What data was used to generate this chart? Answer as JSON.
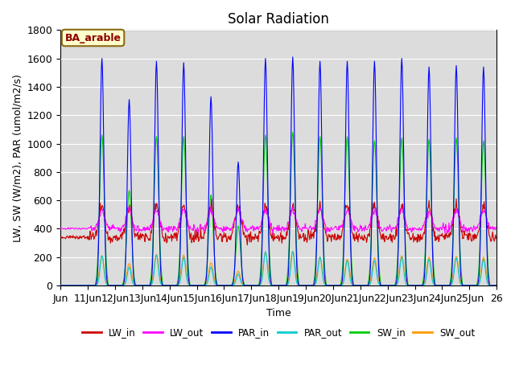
{
  "title": "Solar Radiation",
  "ylabel": "LW, SW (W/m2), PAR (umol/m2/s)",
  "xlabel": "Time",
  "site_label": "BA_arable",
  "ylim": [
    0,
    1800
  ],
  "series": {
    "LW_in": {
      "color": "#cc0000",
      "lw": 0.8
    },
    "LW_out": {
      "color": "#ff00ff",
      "lw": 0.8
    },
    "PAR_in": {
      "color": "#0000ff",
      "lw": 0.8
    },
    "PAR_out": {
      "color": "#00cccc",
      "lw": 0.8
    },
    "SW_in": {
      "color": "#00cc00",
      "lw": 0.8
    },
    "SW_out": {
      "color": "#ff9900",
      "lw": 0.8
    }
  },
  "background_color": "#dcdcdc",
  "figure_facecolor": "#ffffff",
  "title_fontsize": 12,
  "axis_label_fontsize": 9,
  "tick_fontsize": 9,
  "par_in_peaks": [
    1600,
    1310,
    1580,
    1570,
    1330,
    870,
    1600,
    1610,
    1580,
    1580,
    1580,
    1600,
    1540,
    1550,
    1540
  ],
  "sw_in_peaks": [
    1060,
    670,
    1050,
    1050,
    640,
    420,
    1060,
    1080,
    1050,
    1050,
    1020,
    1040,
    1030,
    1040,
    1020
  ],
  "sw_out_peaks": [
    210,
    155,
    220,
    215,
    160,
    100,
    230,
    240,
    200,
    185,
    195,
    210,
    200,
    205,
    200
  ],
  "par_out_peaks": [
    210,
    130,
    215,
    200,
    130,
    80,
    240,
    240,
    200,
    175,
    175,
    200,
    185,
    195,
    185
  ],
  "lw_in_baseline": 340,
  "lw_out_baseline": 400,
  "lw_in_day_peak": 220,
  "lw_out_day_peak": 130
}
